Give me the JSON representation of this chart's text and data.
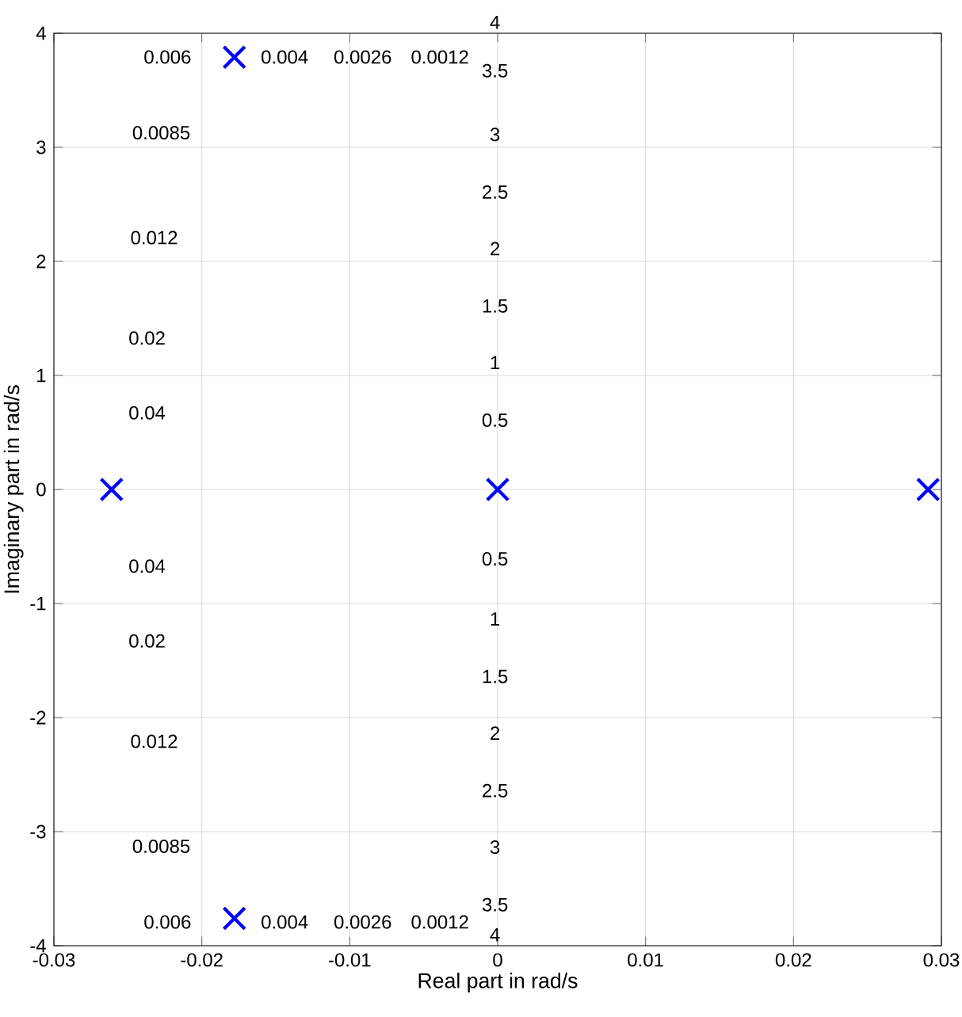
{
  "chart_data": {
    "type": "scatter",
    "xlabel": "Real part in rad/s",
    "ylabel": "Imaginary part in rad/s",
    "x": [
      -0.0261,
      -0.0178,
      -0.0178,
      0,
      0.0291
    ],
    "series": [
      {
        "color": "#0000ff",
        "values": [
          0,
          3.79,
          -3.76,
          0,
          0
        ]
      }
    ],
    "marker": "cross",
    "grid": true,
    "xlim": [
      -0.03,
      0.03
    ],
    "ylim": [
      -4,
      4
    ],
    "xticks": [
      -0.03,
      -0.02,
      -0.01,
      0,
      0.01,
      0.02,
      0.03
    ],
    "yticks": [
      -4,
      -3,
      -2,
      -1,
      0,
      1,
      2,
      3,
      4
    ],
    "annotations": [
      "0.006",
      "0.004",
      "0.0026",
      "0.0012",
      "0.0085",
      "0.012",
      "0.02",
      "0.04",
      "0.04",
      "0.02",
      "0.012",
      "0.0085",
      "0.006",
      "0.004",
      "0.0026",
      "0.0012",
      "4",
      "3.5",
      "3",
      "2.5",
      "2",
      "1.5",
      "1",
      "0.5",
      "0.5",
      "1",
      "1.5",
      "2",
      "2.5",
      "3",
      "3.5",
      "4"
    ]
  }
}
